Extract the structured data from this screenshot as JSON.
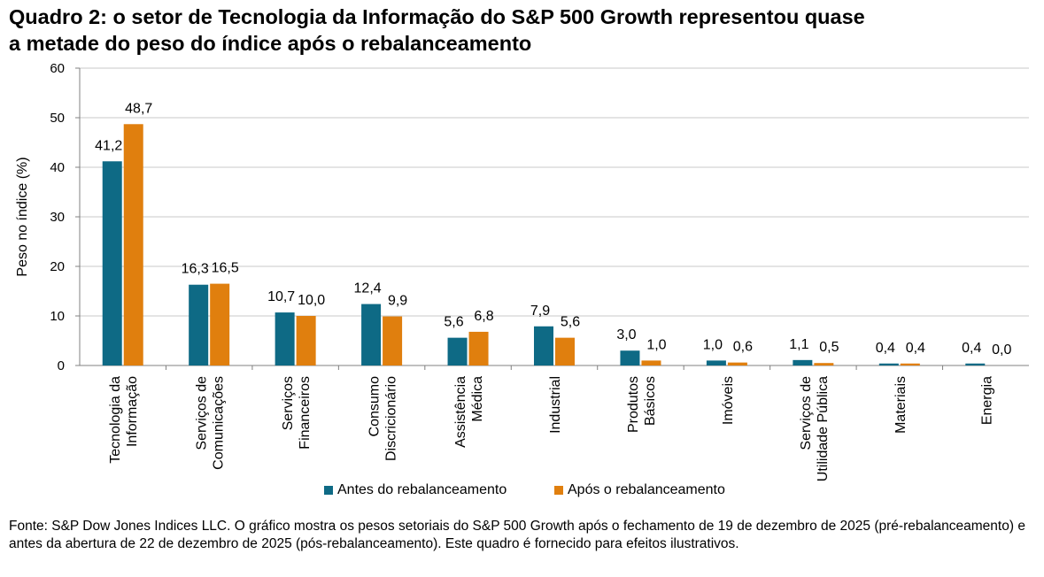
{
  "title": {
    "line1": "Quadro 2: o setor de Tecnologia da Informação do S&P 500 Growth representou quase",
    "line2": "a metade do peso do índice após o rebalanceamento"
  },
  "colors": {
    "before": "#0e6a85",
    "after": "#e07f0e",
    "grid": "#c8c8c8",
    "axis": "#808080"
  },
  "chart_data": {
    "type": "bar",
    "ylabel": "Peso no índice (%)",
    "ylim": [
      0,
      60
    ],
    "yticks": [
      "0",
      "10",
      "20",
      "30",
      "40",
      "50",
      "60"
    ],
    "grid": true,
    "legend_position": "bottom",
    "categories": [
      [
        "Tecnologia da",
        "Informação"
      ],
      [
        "Serviços de",
        "Comunicações"
      ],
      [
        "Serviços",
        "Financeiros"
      ],
      [
        "Consumo",
        "Discricionário"
      ],
      [
        "Assistência",
        "Médica"
      ],
      [
        "Industrial"
      ],
      [
        "Produtos",
        "Básicos"
      ],
      [
        "Imóveis"
      ],
      [
        "Serviços de",
        "Utilidade Pública"
      ],
      [
        "Materiais"
      ],
      [
        "Energia"
      ]
    ],
    "series": [
      {
        "name": "Antes do rebalanceamento",
        "values": [
          41.2,
          16.3,
          10.7,
          12.4,
          5.6,
          7.9,
          3.0,
          1.0,
          1.1,
          0.4,
          0.4
        ],
        "labels": [
          "41,2",
          "16,3",
          "10,7",
          "12,4",
          "5,6",
          "7,9",
          "3,0",
          "1,0",
          "1,1",
          "0,4",
          "0,4"
        ]
      },
      {
        "name": "Após o rebalanceamento",
        "values": [
          48.7,
          16.5,
          10.0,
          9.9,
          6.8,
          5.6,
          1.0,
          0.6,
          0.5,
          0.4,
          0.0
        ],
        "labels": [
          "48,7",
          "16,5",
          "10,0",
          "9,9",
          "6,8",
          "5,6",
          "1,0",
          "0,6",
          "0,5",
          "0,4",
          "0,0"
        ]
      }
    ]
  },
  "source": "Fonte: S&P Dow Jones Indices LLC. O gráfico mostra os pesos setoriais do S&P 500 Growth após o fechamento de 19 de dezembro de 2025 (pré-rebalanceamento) e antes da abertura de 22 de dezembro de 2025 (pós-rebalanceamento). Este quadro é fornecido para efeitos ilustrativos."
}
